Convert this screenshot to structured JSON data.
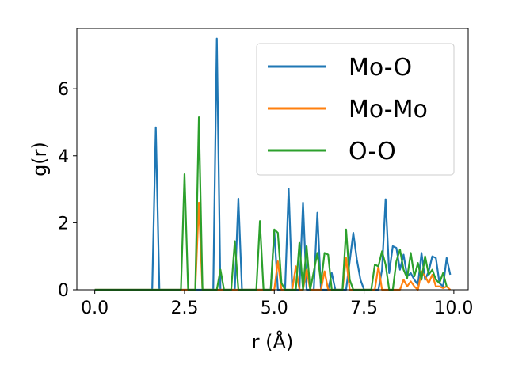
{
  "chart_data": {
    "type": "line",
    "title": "",
    "xlabel": "r (Å)",
    "ylabel": "g(r)",
    "xlim": [
      -0.5,
      10.4
    ],
    "ylim": [
      0,
      7.8
    ],
    "xticks": [
      0.0,
      2.5,
      5.0,
      7.5,
      10.0
    ],
    "xtick_labels": [
      "0.0",
      "2.5",
      "5.0",
      "7.5",
      "10.0"
    ],
    "yticks": [
      0,
      2,
      4,
      6
    ],
    "ytick_labels": [
      "0",
      "2",
      "4",
      "6"
    ],
    "legend_position": "top-right",
    "grid": false,
    "series": [
      {
        "name": "Mo-O",
        "color": "#1f77b4",
        "points": [
          [
            0,
            0
          ],
          [
            1.6,
            0
          ],
          [
            1.7,
            4.85
          ],
          [
            1.8,
            0
          ],
          [
            3.3,
            0
          ],
          [
            3.4,
            7.5
          ],
          [
            3.5,
            0
          ],
          [
            3.9,
            0
          ],
          [
            4.0,
            2.72
          ],
          [
            4.1,
            0
          ],
          [
            4.9,
            0
          ],
          [
            5.0,
            1.75
          ],
          [
            5.1,
            0
          ],
          [
            5.3,
            0
          ],
          [
            5.4,
            3.02
          ],
          [
            5.5,
            0
          ],
          [
            5.7,
            0
          ],
          [
            5.8,
            2.6
          ],
          [
            5.9,
            0
          ],
          [
            6.1,
            0
          ],
          [
            6.2,
            2.3
          ],
          [
            6.3,
            0
          ],
          [
            6.5,
            0
          ],
          [
            6.6,
            0.5
          ],
          [
            6.7,
            0
          ],
          [
            7.0,
            0
          ],
          [
            7.1,
            0.85
          ],
          [
            7.2,
            1.7
          ],
          [
            7.3,
            0.9
          ],
          [
            7.4,
            0.3
          ],
          [
            7.5,
            0
          ],
          [
            7.9,
            0
          ],
          [
            8.0,
            0.6
          ],
          [
            8.1,
            2.7
          ],
          [
            8.2,
            0.5
          ],
          [
            8.3,
            1.3
          ],
          [
            8.4,
            1.25
          ],
          [
            8.5,
            0.6
          ],
          [
            8.6,
            1.05
          ],
          [
            8.7,
            0.4
          ],
          [
            8.8,
            0.5
          ],
          [
            8.9,
            0.3
          ],
          [
            9.0,
            0.15
          ],
          [
            9.1,
            1.1
          ],
          [
            9.2,
            0.3
          ],
          [
            9.3,
            0.55
          ],
          [
            9.4,
            1.0
          ],
          [
            9.5,
            0.95
          ],
          [
            9.6,
            0.2
          ],
          [
            9.7,
            0.1
          ],
          [
            9.8,
            0.95
          ],
          [
            9.9,
            0.45
          ]
        ]
      },
      {
        "name": "Mo-Mo",
        "color": "#ff7f0e",
        "points": [
          [
            0,
            0
          ],
          [
            2.8,
            0
          ],
          [
            2.9,
            2.6
          ],
          [
            3.0,
            0
          ],
          [
            5.0,
            0
          ],
          [
            5.1,
            0.85
          ],
          [
            5.2,
            0
          ],
          [
            5.5,
            0
          ],
          [
            5.6,
            0.7
          ],
          [
            5.7,
            0
          ],
          [
            5.8,
            0
          ],
          [
            5.9,
            0.6
          ],
          [
            6.0,
            0
          ],
          [
            6.3,
            0
          ],
          [
            6.4,
            0.55
          ],
          [
            6.5,
            0
          ],
          [
            6.9,
            0
          ],
          [
            7.0,
            0.95
          ],
          [
            7.1,
            0
          ],
          [
            7.8,
            0
          ],
          [
            7.9,
            0.7
          ],
          [
            8.0,
            0
          ],
          [
            8.5,
            0
          ],
          [
            8.6,
            0.3
          ],
          [
            8.7,
            0.1
          ],
          [
            8.8,
            0.25
          ],
          [
            8.9,
            0.1
          ],
          [
            9.0,
            0
          ],
          [
            9.1,
            0.55
          ],
          [
            9.2,
            0.4
          ],
          [
            9.3,
            0.2
          ],
          [
            9.4,
            0.45
          ],
          [
            9.5,
            0.1
          ],
          [
            9.6,
            0.1
          ],
          [
            9.7,
            0.05
          ],
          [
            9.8,
            0.1
          ],
          [
            9.9,
            0
          ]
        ]
      },
      {
        "name": "O-O",
        "color": "#2ca02c",
        "points": [
          [
            0,
            0
          ],
          [
            2.4,
            0
          ],
          [
            2.5,
            3.45
          ],
          [
            2.6,
            0
          ],
          [
            2.8,
            0
          ],
          [
            2.9,
            5.15
          ],
          [
            3.0,
            0
          ],
          [
            3.4,
            0
          ],
          [
            3.5,
            0.6
          ],
          [
            3.6,
            0
          ],
          [
            3.8,
            0
          ],
          [
            3.9,
            1.45
          ],
          [
            4.0,
            0
          ],
          [
            4.5,
            0
          ],
          [
            4.6,
            2.05
          ],
          [
            4.7,
            0
          ],
          [
            4.9,
            0
          ],
          [
            5.0,
            1.8
          ],
          [
            5.1,
            1.7
          ],
          [
            5.2,
            0.2
          ],
          [
            5.3,
            0
          ],
          [
            5.6,
            0
          ],
          [
            5.7,
            1.4
          ],
          [
            5.8,
            0
          ],
          [
            5.9,
            1.3
          ],
          [
            6.0,
            0
          ],
          [
            6.2,
            1.1
          ],
          [
            6.3,
            0.2
          ],
          [
            6.4,
            1.1
          ],
          [
            6.5,
            1.05
          ],
          [
            6.6,
            0
          ],
          [
            6.9,
            0
          ],
          [
            7.0,
            1.8
          ],
          [
            7.1,
            0.3
          ],
          [
            7.2,
            0
          ],
          [
            7.7,
            0
          ],
          [
            7.8,
            0.75
          ],
          [
            7.9,
            0.7
          ],
          [
            8.0,
            1.15
          ],
          [
            8.1,
            0.75
          ],
          [
            8.2,
            0
          ],
          [
            8.3,
            0
          ],
          [
            8.4,
            0.85
          ],
          [
            8.5,
            1.2
          ],
          [
            8.6,
            0.6
          ],
          [
            8.7,
            0.35
          ],
          [
            8.8,
            1.1
          ],
          [
            8.9,
            0.4
          ],
          [
            9.0,
            0.8
          ],
          [
            9.1,
            0.3
          ],
          [
            9.2,
            1.0
          ],
          [
            9.3,
            0.45
          ],
          [
            9.4,
            0.6
          ],
          [
            9.5,
            0.3
          ],
          [
            9.6,
            0.2
          ],
          [
            9.7,
            0.5
          ],
          [
            9.8,
            0.1
          ]
        ]
      }
    ]
  }
}
